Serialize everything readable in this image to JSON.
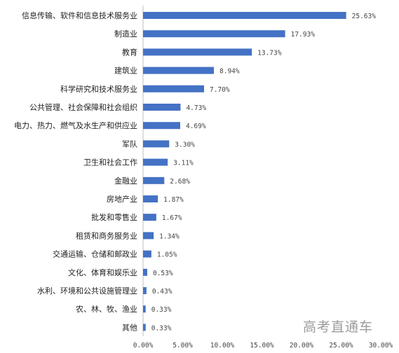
{
  "chart_data": {
    "type": "bar",
    "orientation": "horizontal",
    "categories": [
      "信息传输、软件和信息技术服务业",
      "制造业",
      "教育",
      "建筑业",
      "科学研究和技术服务业",
      "公共管理、社会保障和社会组织",
      "电力、热力、燃气及水生产和供应业",
      "军队",
      "卫生和社会工作",
      "金融业",
      "房地产业",
      "批发和零售业",
      "租赁和商务服务业",
      "交通运输、仓储和邮政业",
      "文化、体育和娱乐业",
      "水利、环境和公共设施管理业",
      "农、林、牧、渔业",
      "其他"
    ],
    "values": [
      25.63,
      17.93,
      13.73,
      8.94,
      7.7,
      4.73,
      4.69,
      3.3,
      3.11,
      2.68,
      1.87,
      1.67,
      1.34,
      1.05,
      0.53,
      0.43,
      0.33,
      0.33
    ],
    "value_labels": [
      "25.63%",
      "17.93%",
      "13.73%",
      "8.94%",
      "7.70%",
      "4.73%",
      "4.69%",
      "3.30%",
      "3.11%",
      "2.68%",
      "1.87%",
      "1.67%",
      "1.34%",
      "1.05%",
      "0.53%",
      "0.43%",
      "0.33%",
      "0.33%"
    ],
    "xlim": [
      0,
      30
    ],
    "xticks": [
      0,
      5,
      10,
      15,
      20,
      25,
      30
    ],
    "xtick_labels": [
      "0.00%",
      "5.00%",
      "10.00%",
      "15.00%",
      "20.00%",
      "25.00%",
      "30.00%"
    ],
    "grid": false,
    "bar_color": "#4472C4",
    "title": "",
    "xlabel": "",
    "ylabel": ""
  },
  "watermark": "高考直通车"
}
